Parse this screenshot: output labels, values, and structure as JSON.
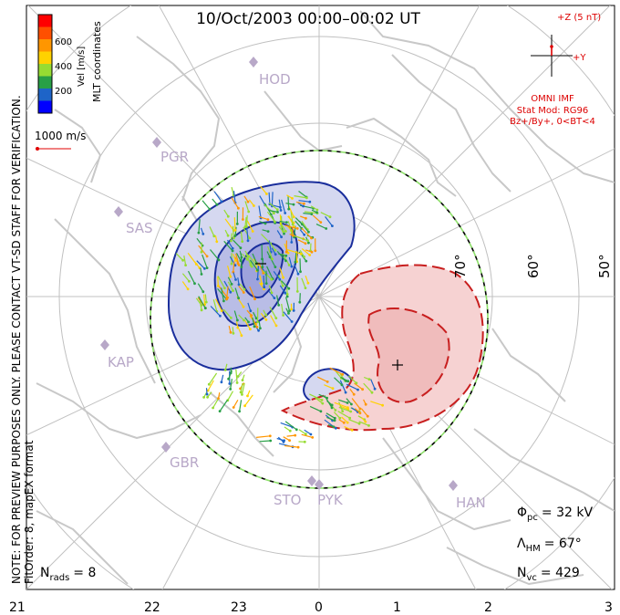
{
  "title": "10/Oct/2003 00:00–00:02 UT",
  "colorbar": {
    "label": "Vel [m/s]",
    "ticks": [
      "600",
      "400",
      "200"
    ],
    "colors": [
      "#0000ff",
      "#1e64c8",
      "#28a046",
      "#96dc32",
      "#ffd200",
      "#ff9600",
      "#ff5000",
      "#ff0000"
    ]
  },
  "coords_label": "MLT coordinates",
  "scale_vector_label": "1000 m/s",
  "side_note": "NOTE: FOR PREVIEW PURPOSES ONLY. PLEASE CONTACT VT-SD STAFF FOR VERIFICATION.",
  "fit_order": "FitOrder: 8, mapEX format",
  "imf": {
    "z_label": "+Z (5 nT)",
    "y_label": "+Y",
    "source": "OMNI IMF",
    "stat_mod": "Stat Mod: RG96",
    "condition": "Bz+/By+, 0<BT<4"
  },
  "latitude_labels": [
    "70°",
    "60°",
    "50°"
  ],
  "stations": [
    "HOD",
    "PGR",
    "SAS",
    "KAP",
    "GBR",
    "STO",
    "PYK",
    "HAN"
  ],
  "mlt_ticks": [
    "21",
    "22",
    "23",
    "0",
    "1",
    "2",
    "3"
  ],
  "stats": {
    "phi_pc": {
      "symbol": "Φ",
      "sub": "pc",
      "value": "= 32 kV"
    },
    "lambda_hm": {
      "symbol": "Λ",
      "sub": "HM",
      "value": "= 67°"
    },
    "n_vc": {
      "symbol": "N",
      "sub": "vc",
      "value": "= 429"
    },
    "n_rads": {
      "symbol": "N",
      "sub": "rads",
      "value": "= 8"
    }
  },
  "colors": {
    "dusk_cell_fill": "#d5d8f0",
    "dawn_cell_fill": "#f6d2d2",
    "dusk_contour": "#1a2e9c",
    "dawn_contour": "#c81e1e",
    "coastline": "#c8c8c8",
    "grid": "#c0c0c0",
    "station": "#b8a8c8",
    "imf_red": "#dd0000"
  }
}
